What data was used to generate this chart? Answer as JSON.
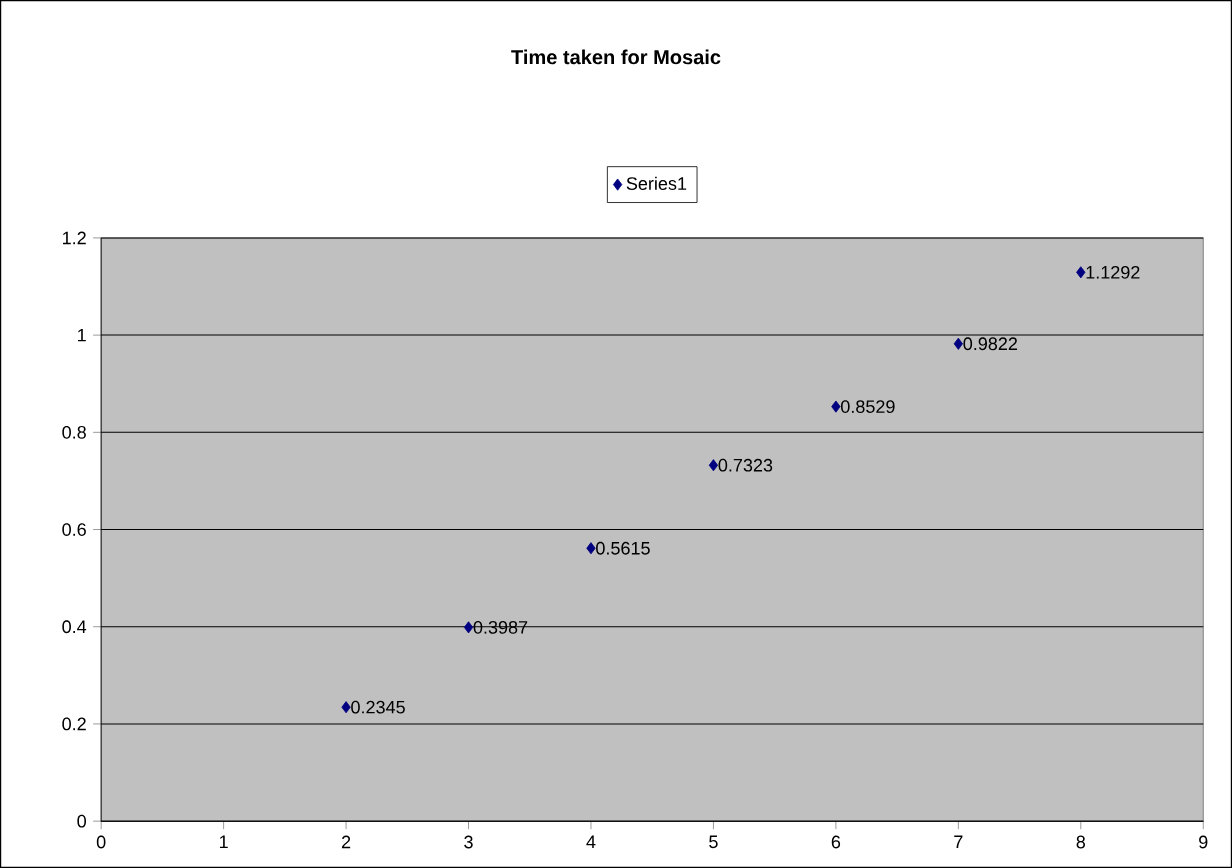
{
  "chart_data": {
    "type": "scatter",
    "title": "Time taken for Mosaic",
    "x": [
      2,
      3,
      4,
      5,
      6,
      7,
      8
    ],
    "series": [
      {
        "name": "Series1",
        "color": "#000080",
        "values": [
          0.2345,
          0.3987,
          0.5615,
          0.7323,
          0.8529,
          0.9822,
          1.1292
        ]
      }
    ],
    "xlim": [
      0,
      9
    ],
    "xticks": [
      0,
      1,
      2,
      3,
      4,
      5,
      6,
      7,
      8,
      9
    ],
    "ylim": [
      0,
      1.2
    ],
    "yticks": [
      0,
      0.2,
      0.4,
      0.6,
      0.8,
      1,
      1.2
    ],
    "grid": "y",
    "legend": "top",
    "marker": "diamond",
    "data_labels": true
  }
}
